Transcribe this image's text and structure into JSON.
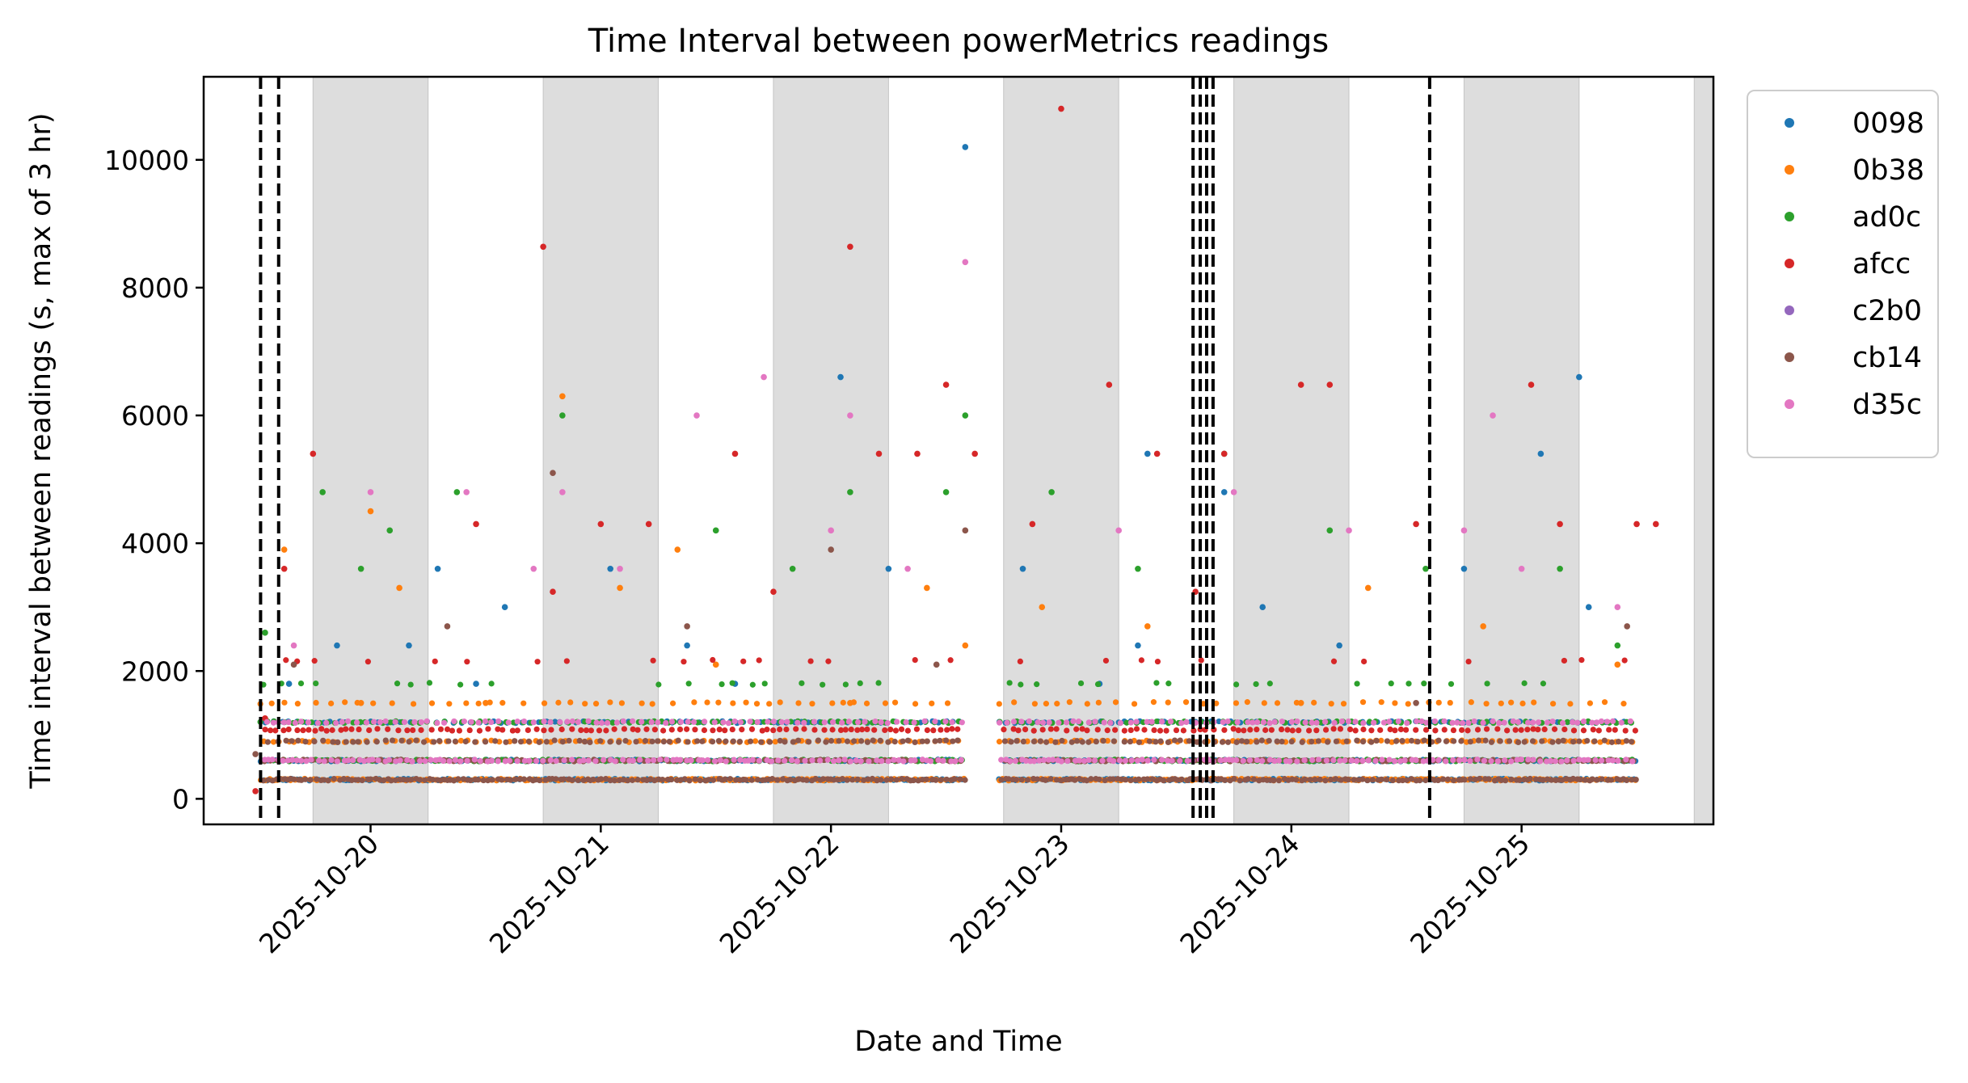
{
  "chart_data": {
    "type": "scatter",
    "title": "Time Interval between powerMetrics readings",
    "xlabel": "Date and Time",
    "ylabel": "Time interval between readings (s, max of 3 hr)",
    "xlim": [
      "2025-10-19 06:36",
      "2025-10-25 20:00"
    ],
    "ylim": [
      -400,
      11300
    ],
    "x_ticks": [
      "2025-10-20",
      "2025-10-21",
      "2025-10-22",
      "2025-10-23",
      "2025-10-24",
      "2025-10-25"
    ],
    "y_ticks": [
      0,
      2000,
      4000,
      6000,
      8000,
      10000
    ],
    "shaded_night_periods": [
      [
        "2025-10-19 18:00",
        "2025-10-20 06:00"
      ],
      [
        "2025-10-20 18:00",
        "2025-10-21 06:00"
      ],
      [
        "2025-10-21 18:00",
        "2025-10-22 06:00"
      ],
      [
        "2025-10-22 18:00",
        "2025-10-23 06:00"
      ],
      [
        "2025-10-23 18:00",
        "2025-10-24 06:00"
      ],
      [
        "2025-10-24 18:00",
        "2025-10-25 06:00"
      ],
      [
        "2025-10-25 18:00",
        "2025-10-25 20:00"
      ]
    ],
    "vertical_dashed_lines": [
      "2025-10-19 12:32",
      "2025-10-19 14:25",
      "2025-10-23 13:45",
      "2025-10-23 14:30",
      "2025-10-23 15:10",
      "2025-10-23 15:50",
      "2025-10-24 14:25"
    ],
    "legend_position": "outside-right",
    "series": [
      {
        "name": "0098",
        "color": "#1f77b4",
        "baseline_levels": [
          1200,
          600,
          300
        ],
        "points": [
          [
            "2025-10-19 15:30",
            1800
          ],
          [
            "2025-10-19 20:30",
            2400
          ],
          [
            "2025-10-20 04:00",
            2400
          ],
          [
            "2025-10-20 07:00",
            3600
          ],
          [
            "2025-10-20 11:00",
            1800
          ],
          [
            "2025-10-20 14:00",
            3000
          ],
          [
            "2025-10-21 01:00",
            3600
          ],
          [
            "2025-10-21 09:00",
            2400
          ],
          [
            "2025-10-21 14:00",
            1800
          ],
          [
            "2025-10-21 18:00",
            1200
          ],
          [
            "2025-10-22 01:00",
            6600
          ],
          [
            "2025-10-22 06:00",
            3600
          ],
          [
            "2025-10-22 14:00",
            10200
          ],
          [
            "2025-10-22 20:00",
            3600
          ],
          [
            "2025-10-23 04:00",
            1800
          ],
          [
            "2025-10-23 08:00",
            2400
          ],
          [
            "2025-10-23 09:00",
            5400
          ],
          [
            "2025-10-23 17:00",
            4800
          ],
          [
            "2025-10-23 21:00",
            3000
          ],
          [
            "2025-10-24 05:00",
            2400
          ],
          [
            "2025-10-24 18:00",
            3600
          ],
          [
            "2025-10-25 02:00",
            5400
          ],
          [
            "2025-10-25 06:00",
            6600
          ],
          [
            "2025-10-25 07:00",
            3000
          ]
        ]
      },
      {
        "name": "0b38",
        "color": "#ff7f0e",
        "baseline_levels": [
          1500,
          900,
          300
        ],
        "points": [
          [
            "2025-10-19 15:00",
            3900
          ],
          [
            "2025-10-19 23:00",
            1500
          ],
          [
            "2025-10-20 00:00",
            4500
          ],
          [
            "2025-10-20 03:00",
            3300
          ],
          [
            "2025-10-20 12:00",
            1500
          ],
          [
            "2025-10-20 20:00",
            6300
          ],
          [
            "2025-10-21 02:00",
            3300
          ],
          [
            "2025-10-21 08:00",
            3900
          ],
          [
            "2025-10-21 12:00",
            2100
          ],
          [
            "2025-10-22 02:00",
            1500
          ],
          [
            "2025-10-22 10:00",
            3300
          ],
          [
            "2025-10-22 14:00",
            2400
          ],
          [
            "2025-10-22 22:00",
            3000
          ],
          [
            "2025-10-23 09:00",
            2700
          ],
          [
            "2025-10-24 01:00",
            1500
          ],
          [
            "2025-10-24 08:00",
            3300
          ],
          [
            "2025-10-24 20:00",
            2700
          ],
          [
            "2025-10-25 10:00",
            2100
          ]
        ]
      },
      {
        "name": "ad0c",
        "color": "#2ca02c",
        "baseline_levels": [
          1800,
          1200,
          600
        ],
        "points": [
          [
            "2025-10-19 13:00",
            2600
          ],
          [
            "2025-10-19 19:00",
            4800
          ],
          [
            "2025-10-19 23:00",
            3600
          ],
          [
            "2025-10-20 02:00",
            4200
          ],
          [
            "2025-10-20 09:00",
            4800
          ],
          [
            "2025-10-20 20:00",
            6000
          ],
          [
            "2025-10-21 12:00",
            4200
          ],
          [
            "2025-10-21 20:00",
            3600
          ],
          [
            "2025-10-22 02:00",
            4800
          ],
          [
            "2025-10-22 12:00",
            4800
          ],
          [
            "2025-10-22 14:00",
            6000
          ],
          [
            "2025-10-22 23:00",
            4800
          ],
          [
            "2025-10-23 08:00",
            3600
          ],
          [
            "2025-10-23 17:00",
            5400
          ],
          [
            "2025-10-24 04:00",
            4200
          ],
          [
            "2025-10-24 14:00",
            3600
          ],
          [
            "2025-10-25 04:00",
            3600
          ],
          [
            "2025-10-25 10:00",
            2400
          ]
        ]
      },
      {
        "name": "afcc",
        "color": "#d62728",
        "baseline_levels": [
          2160,
          1080
        ],
        "points": [
          [
            "2025-10-19 12:00",
            120
          ],
          [
            "2025-10-19 13:00",
            1260
          ],
          [
            "2025-10-19 15:00",
            3600
          ],
          [
            "2025-10-19 18:00",
            5400
          ],
          [
            "2025-10-20 11:00",
            4300
          ],
          [
            "2025-10-20 18:00",
            8640
          ],
          [
            "2025-10-20 19:00",
            3240
          ],
          [
            "2025-10-21 00:00",
            4300
          ],
          [
            "2025-10-21 05:00",
            4300
          ],
          [
            "2025-10-21 14:00",
            5400
          ],
          [
            "2025-10-21 18:00",
            3240
          ],
          [
            "2025-10-22 02:00",
            8640
          ],
          [
            "2025-10-22 05:00",
            5400
          ],
          [
            "2025-10-22 09:00",
            5400
          ],
          [
            "2025-10-22 12:00",
            6480
          ],
          [
            "2025-10-22 15:00",
            5400
          ],
          [
            "2025-10-22 21:00",
            4300
          ],
          [
            "2025-10-23 00:00",
            10800
          ],
          [
            "2025-10-23 05:00",
            6480
          ],
          [
            "2025-10-23 10:00",
            5400
          ],
          [
            "2025-10-23 14:00",
            3240
          ],
          [
            "2025-10-23 17:00",
            5400
          ],
          [
            "2025-10-24 01:00",
            6480
          ],
          [
            "2025-10-24 04:00",
            6480
          ],
          [
            "2025-10-24 13:00",
            4300
          ],
          [
            "2025-10-25 01:00",
            6480
          ],
          [
            "2025-10-25 04:00",
            4300
          ],
          [
            "2025-10-25 12:00",
            4300
          ],
          [
            "2025-10-25 14:00",
            4300
          ]
        ]
      },
      {
        "name": "c2b0",
        "color": "#9467bd",
        "baseline_levels": [],
        "points": []
      },
      {
        "name": "cb14",
        "color": "#8c564b",
        "baseline_levels": [
          300,
          600,
          900
        ],
        "points": [
          [
            "2025-10-19 12:00",
            700
          ],
          [
            "2025-10-19 16:00",
            2100
          ],
          [
            "2025-10-20 08:00",
            2700
          ],
          [
            "2025-10-20 19:00",
            5100
          ],
          [
            "2025-10-21 09:00",
            2700
          ],
          [
            "2025-10-22 00:00",
            3900
          ],
          [
            "2025-10-22 11:00",
            2100
          ],
          [
            "2025-10-22 14:00",
            4200
          ],
          [
            "2025-10-24 13:00",
            1500
          ],
          [
            "2025-10-25 11:00",
            2700
          ]
        ]
      },
      {
        "name": "d35c",
        "color": "#e377c2",
        "baseline_levels": [
          1200,
          600
        ],
        "points": [
          [
            "2025-10-19 16:00",
            2400
          ],
          [
            "2025-10-20 00:00",
            4800
          ],
          [
            "2025-10-20 10:00",
            4800
          ],
          [
            "2025-10-20 17:00",
            3600
          ],
          [
            "2025-10-20 20:00",
            4800
          ],
          [
            "2025-10-21 02:00",
            3600
          ],
          [
            "2025-10-21 10:00",
            6000
          ],
          [
            "2025-10-21 17:00",
            6600
          ],
          [
            "2025-10-22 00:00",
            4200
          ],
          [
            "2025-10-22 02:00",
            6000
          ],
          [
            "2025-10-22 08:00",
            3600
          ],
          [
            "2025-10-22 14:00",
            8400
          ],
          [
            "2025-10-23 06:00",
            4200
          ],
          [
            "2025-10-23 18:00",
            4800
          ],
          [
            "2025-10-24 06:00",
            4200
          ],
          [
            "2025-10-24 18:00",
            4200
          ],
          [
            "2025-10-25 00:00",
            3600
          ],
          [
            "2025-10-25 10:00",
            3000
          ],
          [
            "2025-10-24 21:00",
            6000
          ]
        ]
      }
    ]
  }
}
